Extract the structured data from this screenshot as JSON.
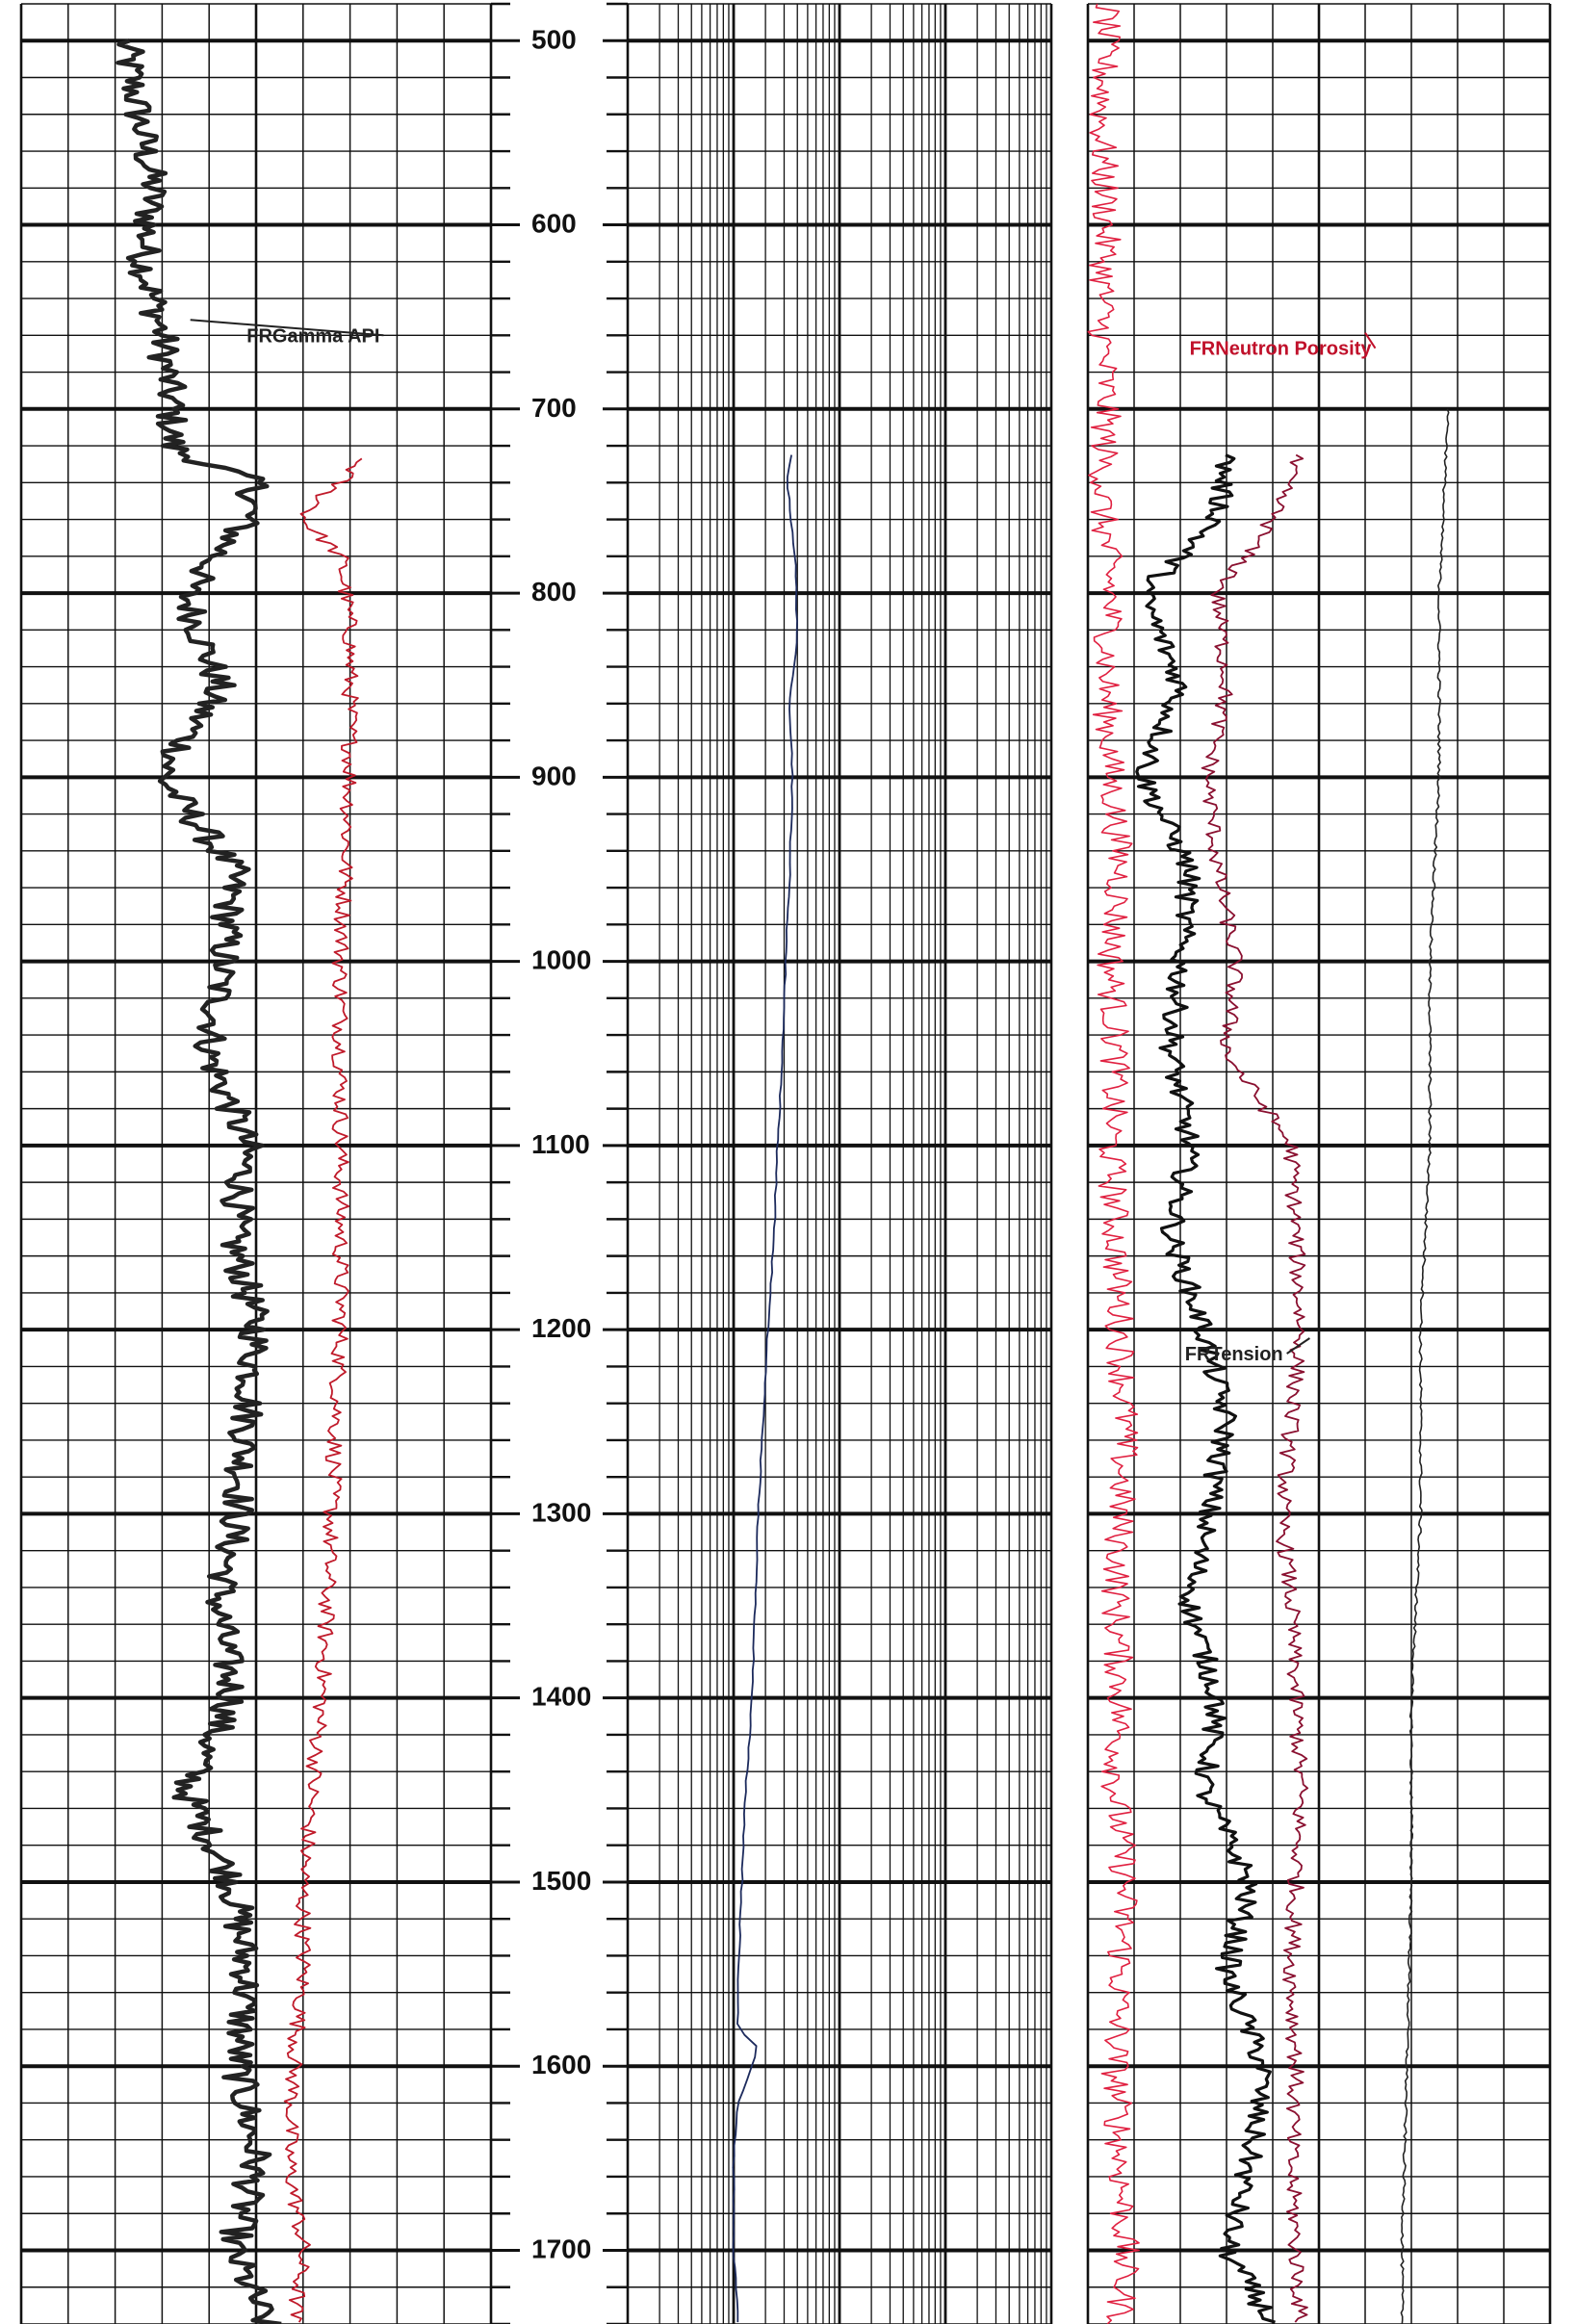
{
  "chart_data": {
    "type": "line",
    "title": "",
    "y_axis": {
      "range": [
        480,
        1740
      ],
      "ticks": [
        500,
        600,
        700,
        800,
        900,
        1000,
        1100,
        1200,
        1300,
        1400,
        1500,
        1600,
        1700
      ],
      "minor_step": 20,
      "reversed": true
    },
    "tracks": [
      {
        "name": "track-1",
        "scale": "linear",
        "divisions": 10
      },
      {
        "name": "track-2",
        "scale": "log",
        "decades": 4
      },
      {
        "name": "track-3",
        "scale": "linear",
        "divisions": 10
      }
    ],
    "series": [
      {
        "name": "FRGamma API",
        "track": "track-1",
        "color": "#222222",
        "depth": [
          500,
          540,
          580,
          620,
          660,
          700,
          720,
          725,
          740,
          760,
          800,
          850,
          900,
          950,
          1000,
          1050,
          1100,
          1150,
          1200,
          1250,
          1300,
          1350,
          1400,
          1450,
          1500,
          1550,
          1600,
          1650,
          1700,
          1740
        ],
        "values": [
          22,
          25,
          28,
          26,
          30,
          32,
          32,
          35,
          50,
          48,
          35,
          42,
          30,
          45,
          43,
          40,
          48,
          45,
          50,
          48,
          46,
          42,
          45,
          35,
          45,
          48,
          46,
          50,
          45,
          52
        ]
      },
      {
        "name": "",
        "track": "track-1",
        "color": "#c01a2a",
        "depth": [
          727,
          735,
          745,
          760,
          780,
          820,
          900,
          1000,
          1100,
          1200,
          1300,
          1400,
          1450,
          1500,
          1550,
          1600,
          1650,
          1700,
          1740
        ],
        "values": [
          72,
          70,
          65,
          60,
          68,
          70,
          70,
          68,
          68,
          68,
          66,
          64,
          62,
          60,
          60,
          58,
          57,
          60,
          58
        ]
      },
      {
        "name": "",
        "track": "track-2",
        "color": "#1c2a5c",
        "depth": [
          725,
          740,
          780,
          820,
          860,
          900,
          950,
          1000,
          1050,
          1100,
          1150,
          1200,
          1250,
          1300,
          1350,
          1400,
          1450,
          1500,
          1550,
          1580,
          1590,
          1620,
          1650,
          1700,
          1740
        ],
        "values": [
          35,
          32,
          38,
          40,
          34,
          36,
          34,
          31,
          29,
          26,
          24,
          21,
          19,
          17,
          16,
          15,
          13,
          12,
          11,
          11,
          17,
          11,
          10,
          10,
          11
        ]
      },
      {
        "name": "FRNeutron Porosity",
        "track": "track-3",
        "color": "#e02040",
        "depth": [
          480,
          550,
          600,
          650,
          700,
          750,
          800,
          850,
          900,
          950,
          1000,
          1050,
          1100,
          1150,
          1200,
          1250,
          1300,
          1350,
          1400,
          1450,
          1500,
          1550,
          1600,
          1650,
          1700,
          1740
        ],
        "values": [
          4,
          3,
          4,
          3,
          4,
          3,
          5,
          4,
          5,
          7,
          5,
          6,
          5,
          6,
          7,
          8,
          7,
          6,
          7,
          6,
          8,
          7,
          6,
          7,
          8,
          7
        ]
      },
      {
        "name": "",
        "track": "track-3",
        "color": "#111111",
        "depth": [
          725,
          760,
          800,
          850,
          900,
          950,
          1000,
          1050,
          1100,
          1150,
          1200,
          1250,
          1300,
          1350,
          1400,
          1450,
          1500,
          1550,
          1600,
          1650,
          1700,
          1740
        ],
        "values": [
          30,
          28,
          12,
          20,
          12,
          22,
          20,
          18,
          22,
          18,
          25,
          30,
          26,
          22,
          28,
          25,
          35,
          30,
          38,
          35,
          30,
          40
        ]
      },
      {
        "name": "",
        "track": "track-3",
        "color": "#8a1030",
        "depth": [
          725,
          760,
          800,
          850,
          900,
          950,
          1000,
          1050,
          1100,
          1150,
          1200,
          1250,
          1300,
          1350,
          1400,
          1450,
          1500,
          1550,
          1600,
          1650,
          1700,
          1740
        ],
        "values": [
          45,
          40,
          28,
          30,
          26,
          28,
          32,
          30,
          44,
          45,
          46,
          44,
          42,
          44,
          45,
          46,
          45,
          44,
          45,
          44,
          45,
          46
        ]
      },
      {
        "name": "FRTension",
        "track": "track-3",
        "color": "#222222",
        "depth": [
          700,
          800,
          900,
          1000,
          1100,
          1200,
          1300,
          1400,
          1500,
          1600,
          1700,
          1740
        ],
        "values": [
          78,
          76,
          76,
          74,
          74,
          72,
          72,
          70,
          70,
          69,
          68,
          68
        ]
      }
    ],
    "annotations": [
      {
        "text": "FRGamma API",
        "track": "track-1",
        "depth": 660,
        "color": "#222222"
      },
      {
        "text": "FRNeutron Porosity",
        "track": "track-3",
        "depth": 667,
        "color": "#c0102a"
      },
      {
        "text": "FRTension",
        "track": "track-3",
        "depth": 1213,
        "color": "#222222"
      }
    ]
  }
}
